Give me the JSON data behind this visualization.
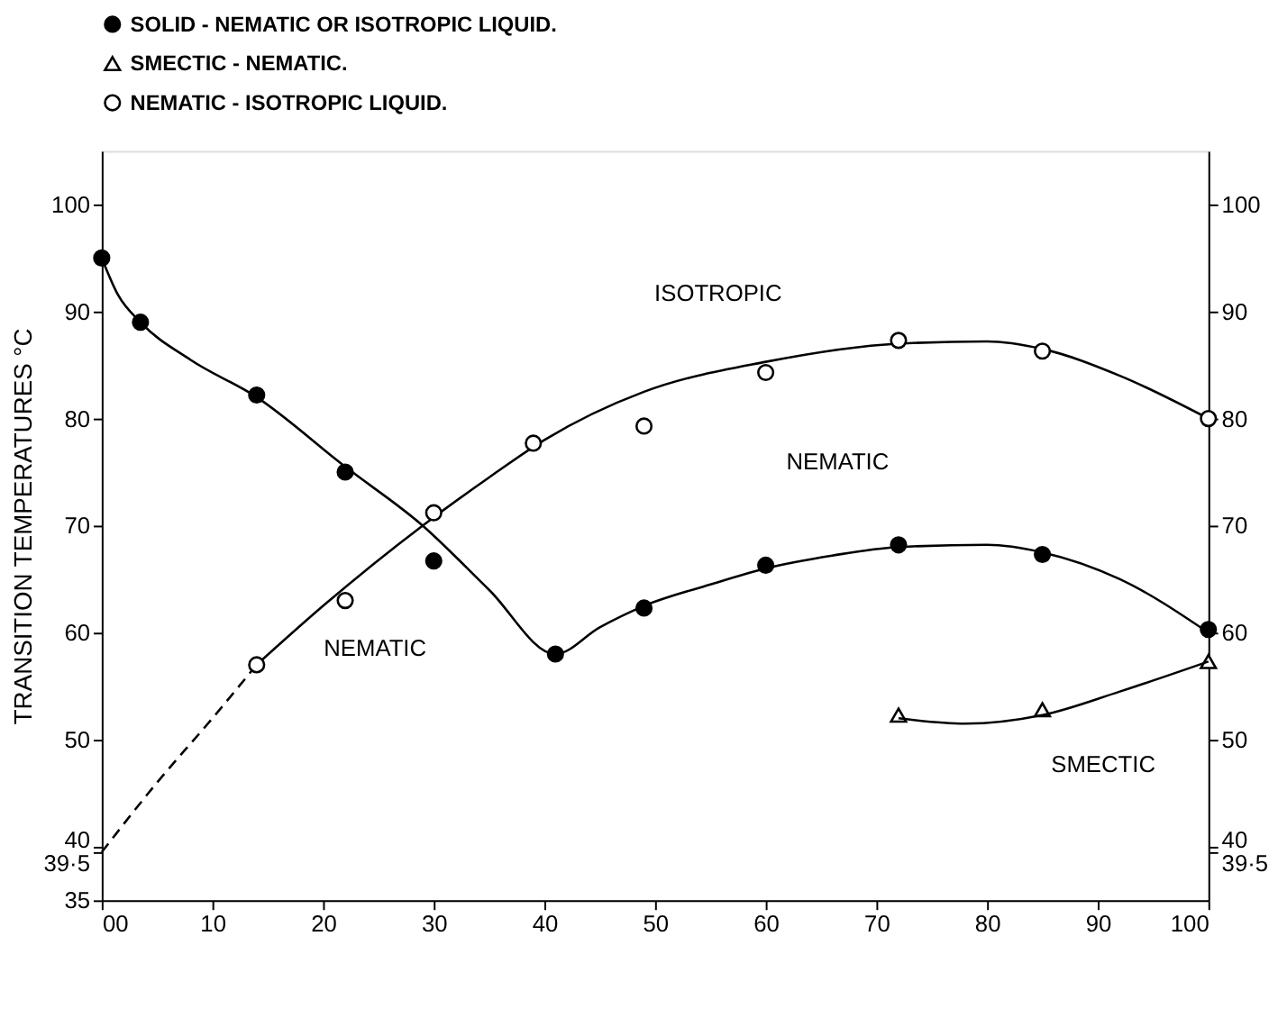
{
  "chart_data": {
    "type": "scatter",
    "ylabel": "TRANSITION  TEMPERATURES °C",
    "xlim": [
      0,
      100
    ],
    "xticks": [
      {
        "value": 0,
        "label": "00"
      },
      10,
      20,
      30,
      40,
      50,
      60,
      70,
      80,
      90,
      100
    ],
    "ylim": [
      35,
      105
    ],
    "yticks": [
      35,
      {
        "value": 39.5,
        "label": "39·5"
      },
      40,
      50,
      60,
      70,
      80,
      90,
      100
    ],
    "y2lim": [
      35,
      105
    ],
    "y2ticks": [
      {
        "value": 39.5,
        "label": "39·5"
      },
      40,
      50,
      60,
      70,
      80,
      90,
      100
    ],
    "grid": false,
    "legend": "top",
    "series": [
      {
        "name": "SOLID - NEMATIC OR ISOTROPIC LIQUID.",
        "marker": "circle",
        "color": "#000000",
        "x": [
          0,
          3.5,
          14,
          22,
          30,
          41,
          49,
          60,
          72,
          85,
          100
        ],
        "values": [
          95,
          89,
          82.2,
          75,
          66.7,
          58,
          62.3,
          66.3,
          68.2,
          67.3,
          60.3
        ]
      },
      {
        "name": "SMECTIC - NEMATIC.",
        "marker": "triangle",
        "color": "#ffffff",
        "x": [
          72,
          85,
          100
        ],
        "values": [
          52.3,
          52.8,
          57.3
        ]
      },
      {
        "name": "NEMATIC - ISOTROPIC LIQUID.",
        "marker": "circle",
        "color": "#ffffff",
        "x": [
          14,
          22,
          30,
          39,
          49,
          60,
          72,
          85,
          100
        ],
        "values": [
          57,
          63,
          71.2,
          77.7,
          79.3,
          84.3,
          87.3,
          86.3,
          80
        ]
      },
      {
        "type": "line",
        "line_style": "solid",
        "color": "#000000",
        "x": [
          0,
          1.5,
          3.5,
          8,
          14,
          22,
          29,
          35,
          41,
          45,
          49,
          55,
          60,
          66,
          72,
          80,
          85,
          92,
          100
        ],
        "values": [
          95,
          91.5,
          89,
          85.5,
          82,
          75.5,
          70,
          64,
          58,
          60.5,
          62.5,
          64.5,
          66,
          67.2,
          68,
          68.2,
          67.5,
          65,
          60
        ]
      },
      {
        "type": "line",
        "line_style": "solid",
        "color": "#000000",
        "x": [
          14,
          20,
          29,
          35,
          40,
          49,
          60,
          72,
          80,
          85,
          92,
          100
        ],
        "values": [
          57,
          62.5,
          70,
          74.5,
          78,
          82.5,
          85.3,
          87,
          87.2,
          86.5,
          84,
          80
        ]
      },
      {
        "type": "line",
        "line_style": "dashed",
        "color": "#000000",
        "x": [
          0,
          5,
          10,
          14
        ],
        "values": [
          39.5,
          46,
          52,
          57
        ]
      },
      {
        "type": "line",
        "line_style": "solid",
        "color": "#000000",
        "x": [
          72,
          78,
          85,
          92,
          100
        ],
        "values": [
          52,
          51.5,
          52.3,
          54.5,
          57.3
        ]
      }
    ],
    "annotations": [
      "ISOTROPIC",
      "NEMATIC",
      "NEMATIC",
      "SMECTIC"
    ]
  }
}
